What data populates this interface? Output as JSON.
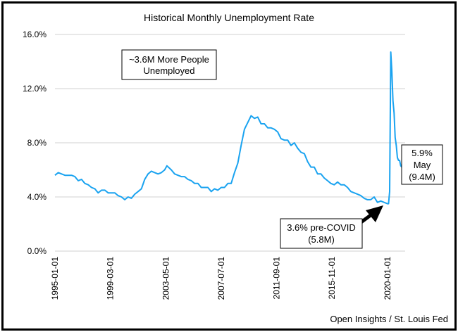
{
  "chart_data": {
    "type": "line",
    "title": "Historical Monthly Unemployment Rate",
    "xlabel": "",
    "ylabel": "",
    "ylim": [
      0,
      16
    ],
    "y_ticks": [
      "0.0%",
      "4.0%",
      "8.0%",
      "12.0%",
      "16.0%"
    ],
    "x_ticks": [
      "1995-01-01",
      "1999-03-01",
      "2003-05-01",
      "2007-07-01",
      "2011-09-01",
      "2015-11-01",
      "2020-01-01"
    ],
    "grid": "horizontal",
    "series_color": "#1aa3f0",
    "series": [
      {
        "values": [
          [
            "1995-01",
            5.6
          ],
          [
            "1995-04",
            5.8
          ],
          [
            "1995-07",
            5.7
          ],
          [
            "1995-10",
            5.6
          ],
          [
            "1996-01",
            5.6
          ],
          [
            "1996-04",
            5.6
          ],
          [
            "1996-07",
            5.5
          ],
          [
            "1996-10",
            5.2
          ],
          [
            "1997-01",
            5.3
          ],
          [
            "1997-04",
            5.0
          ],
          [
            "1997-07",
            4.9
          ],
          [
            "1997-10",
            4.7
          ],
          [
            "1998-01",
            4.6
          ],
          [
            "1998-04",
            4.3
          ],
          [
            "1998-07",
            4.5
          ],
          [
            "1998-10",
            4.5
          ],
          [
            "1999-01",
            4.3
          ],
          [
            "1999-04",
            4.3
          ],
          [
            "1999-07",
            4.3
          ],
          [
            "1999-10",
            4.1
          ],
          [
            "2000-01",
            4.0
          ],
          [
            "2000-04",
            3.8
          ],
          [
            "2000-07",
            4.0
          ],
          [
            "2000-10",
            3.9
          ],
          [
            "2001-01",
            4.2
          ],
          [
            "2001-04",
            4.4
          ],
          [
            "2001-07",
            4.6
          ],
          [
            "2001-10",
            5.3
          ],
          [
            "2002-01",
            5.7
          ],
          [
            "2002-04",
            5.9
          ],
          [
            "2002-07",
            5.8
          ],
          [
            "2002-10",
            5.7
          ],
          [
            "2003-01",
            5.8
          ],
          [
            "2003-04",
            6.0
          ],
          [
            "2003-06",
            6.3
          ],
          [
            "2003-10",
            6.0
          ],
          [
            "2004-01",
            5.7
          ],
          [
            "2004-04",
            5.6
          ],
          [
            "2004-07",
            5.5
          ],
          [
            "2004-10",
            5.5
          ],
          [
            "2005-01",
            5.3
          ],
          [
            "2005-04",
            5.2
          ],
          [
            "2005-07",
            5.0
          ],
          [
            "2005-10",
            5.0
          ],
          [
            "2006-01",
            4.7
          ],
          [
            "2006-04",
            4.7
          ],
          [
            "2006-07",
            4.7
          ],
          [
            "2006-10",
            4.4
          ],
          [
            "2007-01",
            4.6
          ],
          [
            "2007-04",
            4.5
          ],
          [
            "2007-07",
            4.7
          ],
          [
            "2007-10",
            4.7
          ],
          [
            "2008-01",
            5.0
          ],
          [
            "2008-04",
            5.0
          ],
          [
            "2008-07",
            5.8
          ],
          [
            "2008-10",
            6.5
          ],
          [
            "2009-01",
            7.8
          ],
          [
            "2009-04",
            9.0
          ],
          [
            "2009-07",
            9.5
          ],
          [
            "2009-10",
            10.0
          ],
          [
            "2010-01",
            9.8
          ],
          [
            "2010-04",
            9.9
          ],
          [
            "2010-07",
            9.4
          ],
          [
            "2010-10",
            9.4
          ],
          [
            "2011-01",
            9.1
          ],
          [
            "2011-04",
            9.1
          ],
          [
            "2011-07",
            9.0
          ],
          [
            "2011-10",
            8.8
          ],
          [
            "2012-01",
            8.3
          ],
          [
            "2012-04",
            8.2
          ],
          [
            "2012-07",
            8.2
          ],
          [
            "2012-10",
            7.8
          ],
          [
            "2013-01",
            8.0
          ],
          [
            "2013-04",
            7.6
          ],
          [
            "2013-07",
            7.3
          ],
          [
            "2013-10",
            7.2
          ],
          [
            "2014-01",
            6.6
          ],
          [
            "2014-04",
            6.2
          ],
          [
            "2014-07",
            6.2
          ],
          [
            "2014-10",
            5.7
          ],
          [
            "2015-01",
            5.7
          ],
          [
            "2015-04",
            5.4
          ],
          [
            "2015-07",
            5.2
          ],
          [
            "2015-10",
            5.0
          ],
          [
            "2016-01",
            4.9
          ],
          [
            "2016-04",
            5.1
          ],
          [
            "2016-07",
            4.9
          ],
          [
            "2016-10",
            4.9
          ],
          [
            "2017-01",
            4.7
          ],
          [
            "2017-04",
            4.4
          ],
          [
            "2017-07",
            4.3
          ],
          [
            "2017-10",
            4.2
          ],
          [
            "2018-01",
            4.1
          ],
          [
            "2018-04",
            3.9
          ],
          [
            "2018-07",
            3.8
          ],
          [
            "2018-10",
            3.8
          ],
          [
            "2019-01",
            4.0
          ],
          [
            "2019-04",
            3.6
          ],
          [
            "2019-07",
            3.7
          ],
          [
            "2019-10",
            3.6
          ],
          [
            "2020-01",
            3.5
          ],
          [
            "2020-02",
            3.5
          ],
          [
            "2020-03",
            4.4
          ],
          [
            "2020-04",
            14.7
          ],
          [
            "2020-05",
            13.3
          ],
          [
            "2020-06",
            11.1
          ],
          [
            "2020-07",
            10.2
          ],
          [
            "2020-08",
            8.4
          ],
          [
            "2020-09",
            7.8
          ],
          [
            "2020-10",
            6.9
          ],
          [
            "2020-11",
            6.7
          ],
          [
            "2020-12",
            6.7
          ],
          [
            "2021-01",
            6.3
          ],
          [
            "2021-02",
            6.2
          ],
          [
            "2021-03",
            6.0
          ],
          [
            "2021-04",
            6.1
          ],
          [
            "2021-05",
            5.9
          ]
        ]
      }
    ],
    "annotations": {
      "top_box": [
        "~3.6M More People",
        "Unemployed"
      ],
      "end_box": [
        "5.9%",
        "May",
        "(9.4M)"
      ],
      "precovid_box": [
        "3.6% pre-COVID",
        "(5.8M)"
      ]
    },
    "source": "Open Insights / St. Louis Fed"
  }
}
